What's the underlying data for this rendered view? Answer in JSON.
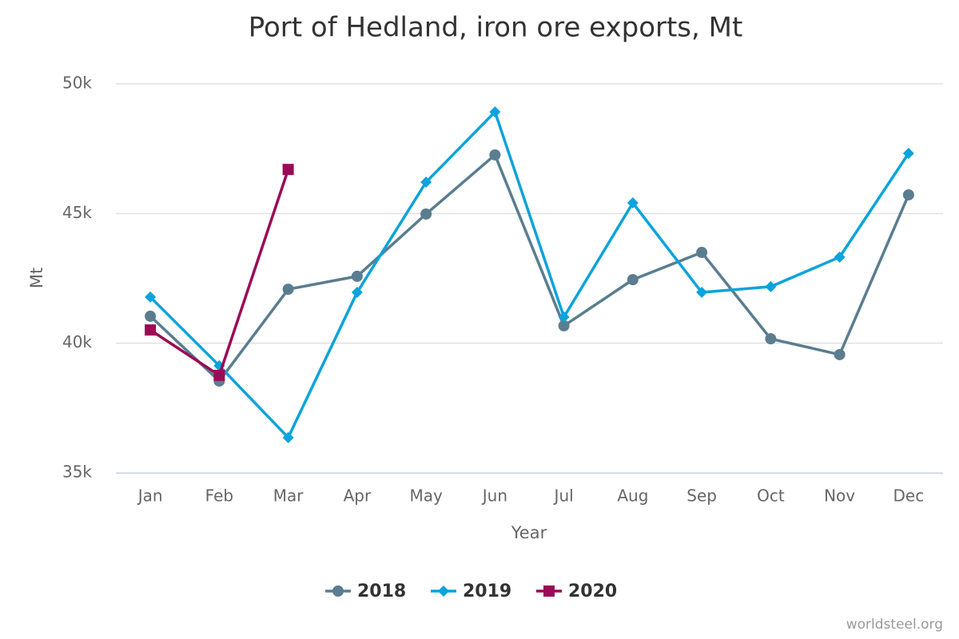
{
  "chart_data": {
    "type": "line",
    "title": "Port of Hedland, iron ore exports, Mt",
    "x_label": "Year",
    "y_label": "Mt",
    "credit": "worldsteel.org",
    "categories": [
      "Jan",
      "Feb",
      "Mar",
      "Apr",
      "May",
      "Jun",
      "Jul",
      "Aug",
      "Sep",
      "Oct",
      "Nov",
      "Dec"
    ],
    "series": [
      {
        "name": "2018",
        "color": "#5a7d90",
        "marker": "circle",
        "values": [
          41040,
          38540,
          42080,
          42580,
          44980,
          47260,
          40670,
          42450,
          43500,
          40170,
          39560,
          45720
        ]
      },
      {
        "name": "2019",
        "color": "#0aa3dc",
        "marker": "diamond",
        "values": [
          41780,
          39130,
          36360,
          41960,
          46210,
          48920,
          41010,
          45410,
          41960,
          42180,
          43320,
          47320
        ]
      },
      {
        "name": "2020",
        "color": "#9b0a56",
        "marker": "square",
        "values": [
          40510,
          38760,
          46700,
          null,
          null,
          null,
          null,
          null,
          null,
          null,
          null,
          null
        ]
      }
    ],
    "ylim": [
      35000,
      50000
    ],
    "yticks": [
      {
        "value": 35000,
        "label": "35k"
      },
      {
        "value": 40000,
        "label": "40k"
      },
      {
        "value": 45000,
        "label": "45k"
      },
      {
        "value": 50000,
        "label": "50k"
      }
    ],
    "grid": true,
    "legend": "bottom"
  }
}
